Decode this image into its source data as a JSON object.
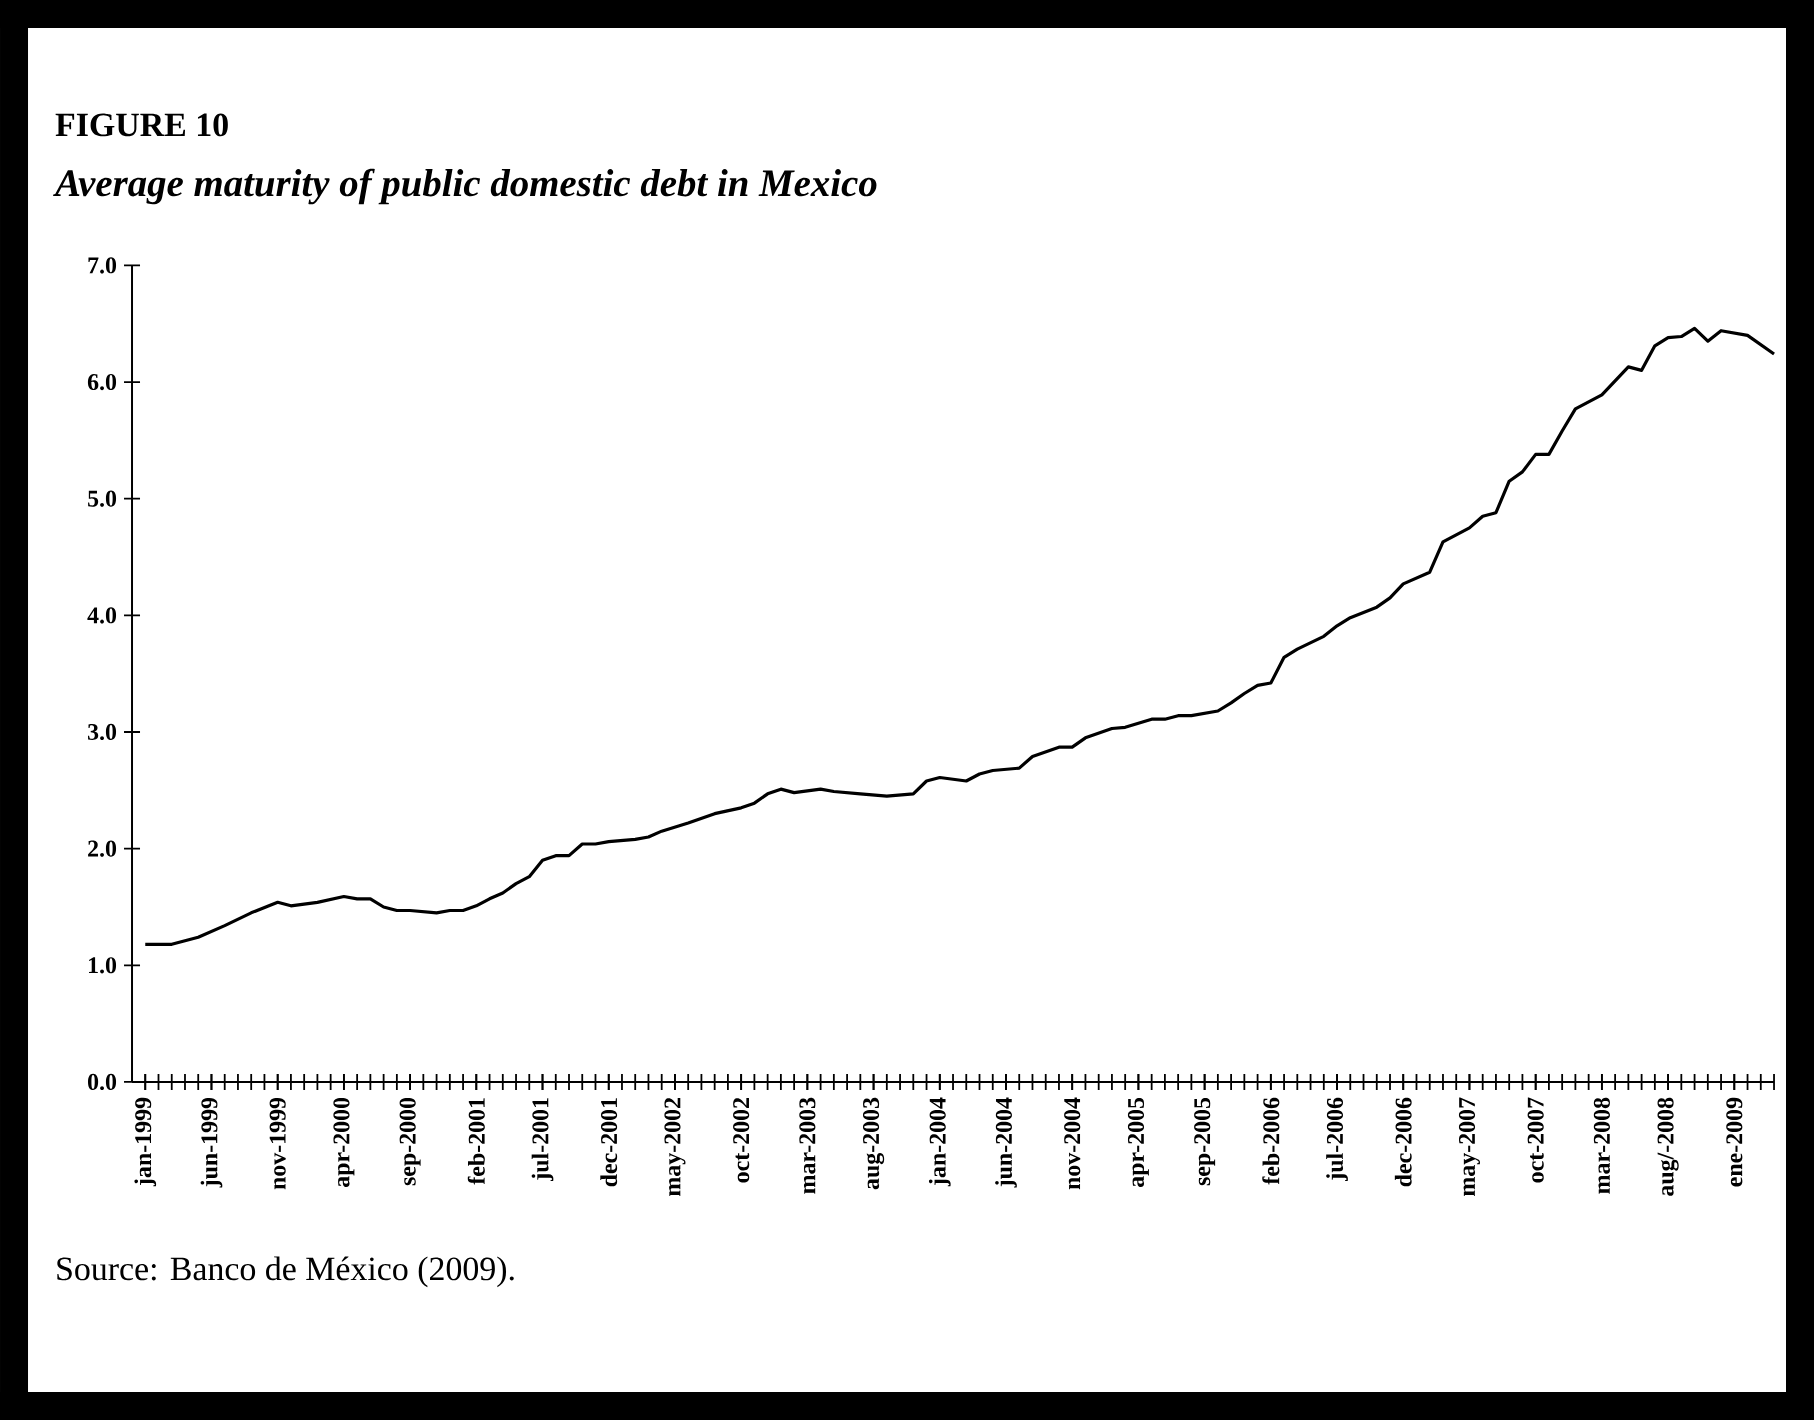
{
  "chart_data": {
    "type": "line",
    "title": "FIGURE 10",
    "subtitle": "Average maturity of public domestic debt in Mexico",
    "annotations": [
      "Source: Banco de México (2009)."
    ],
    "x": [
      "1999-01",
      "1999-03",
      "1999-05",
      "1999-07",
      "1999-09",
      "1999-11",
      "1999-12",
      "2000-02",
      "2000-04",
      "2000-05",
      "2000-06",
      "2000-07",
      "2000-08",
      "2000-09",
      "2000-11",
      "2000-12",
      "2001-01",
      "2001-02",
      "2001-03",
      "2001-04",
      "2001-05",
      "2001-06",
      "2001-07",
      "2001-08",
      "2001-09",
      "2001-10",
      "2001-11",
      "2001-12",
      "2002-02",
      "2002-03",
      "2002-04",
      "2002-06",
      "2002-08",
      "2002-10",
      "2002-11",
      "2002-12",
      "2003-01",
      "2003-02",
      "2003-04",
      "2003-05",
      "2003-07",
      "2003-09",
      "2003-11",
      "2003-12",
      "2004-01",
      "2004-03",
      "2004-04",
      "2004-05",
      "2004-07",
      "2004-08",
      "2004-10",
      "2004-11",
      "2004-12",
      "2005-02",
      "2005-03",
      "2005-05",
      "2005-06",
      "2005-07",
      "2005-08",
      "2005-10",
      "2005-11",
      "2005-12",
      "2006-01",
      "2006-02",
      "2006-03",
      "2006-04",
      "2006-06",
      "2006-07",
      "2006-08",
      "2006-10",
      "2006-11",
      "2006-12",
      "2007-02",
      "2007-03",
      "2007-04",
      "2007-05",
      "2007-06",
      "2007-07",
      "2007-08",
      "2007-09",
      "2007-10",
      "2007-11",
      "2007-12",
      "2008-01",
      "2008-03",
      "2008-05",
      "2008-06",
      "2008-07",
      "2008-08",
      "2008-09",
      "2008-10",
      "2008-11",
      "2008-12",
      "2009-02",
      "2009-04"
    ],
    "series": [
      {
        "color": "#000000",
        "values": [
          1.18,
          1.18,
          1.24,
          1.34,
          1.45,
          1.54,
          1.51,
          1.54,
          1.59,
          1.57,
          1.57,
          1.5,
          1.47,
          1.47,
          1.45,
          1.47,
          1.47,
          1.51,
          1.57,
          1.62,
          1.7,
          1.76,
          1.9,
          1.94,
          1.94,
          2.04,
          2.04,
          2.06,
          2.08,
          2.1,
          2.15,
          2.22,
          2.3,
          2.35,
          2.39,
          2.47,
          2.51,
          2.48,
          2.51,
          2.49,
          2.47,
          2.45,
          2.47,
          2.58,
          2.61,
          2.58,
          2.64,
          2.67,
          2.69,
          2.79,
          2.87,
          2.87,
          2.95,
          3.03,
          3.04,
          3.11,
          3.11,
          3.14,
          3.14,
          3.18,
          3.25,
          3.33,
          3.4,
          3.42,
          3.64,
          3.71,
          3.82,
          3.91,
          3.98,
          4.07,
          4.15,
          4.27,
          4.37,
          4.63,
          4.69,
          4.75,
          4.85,
          4.88,
          5.15,
          5.23,
          5.38,
          5.38,
          5.58,
          5.77,
          5.89,
          6.13,
          6.1,
          6.31,
          6.38,
          6.39,
          6.46,
          6.35,
          6.44,
          6.4,
          6.24
        ]
      }
    ],
    "xlim": [
      "1998-12",
      "2009-04"
    ],
    "xticks": [
      {
        "value": "1999-01",
        "label": "jan-1999"
      },
      {
        "value": "1999-06",
        "label": "jun-1999"
      },
      {
        "value": "1999-11",
        "label": "nov-1999"
      },
      {
        "value": "2000-04",
        "label": "apr-2000"
      },
      {
        "value": "2000-09",
        "label": "sep-2000"
      },
      {
        "value": "2001-02",
        "label": "feb-2001"
      },
      {
        "value": "2001-07",
        "label": "jul-2001"
      },
      {
        "value": "2001-12",
        "label": "dec-2001"
      },
      {
        "value": "2002-05",
        "label": "may-2002"
      },
      {
        "value": "2002-10",
        "label": "oct-2002"
      },
      {
        "value": "2003-03",
        "label": "mar-2003"
      },
      {
        "value": "2003-08",
        "label": "aug-2003"
      },
      {
        "value": "2004-01",
        "label": "jan-2004"
      },
      {
        "value": "2004-06",
        "label": "jun-2004"
      },
      {
        "value": "2004-11",
        "label": "nov-2004"
      },
      {
        "value": "2005-04",
        "label": "apr-2005"
      },
      {
        "value": "2005-09",
        "label": "sep-2005"
      },
      {
        "value": "2006-02",
        "label": "feb-2006"
      },
      {
        "value": "2006-07",
        "label": "jul-2006"
      },
      {
        "value": "2006-12",
        "label": "dec-2006"
      },
      {
        "value": "2007-05",
        "label": "may-2007"
      },
      {
        "value": "2007-10",
        "label": "oct-2007"
      },
      {
        "value": "2008-03",
        "label": "mar-2008"
      },
      {
        "value": "2008-08",
        "label": "aug/-2008"
      },
      {
        "value": "2009-01",
        "label": "ene-2009"
      }
    ],
    "ylim": [
      0,
      7
    ],
    "yticks": [
      {
        "value": 0,
        "label": "0.0"
      },
      {
        "value": 1,
        "label": "1.0"
      },
      {
        "value": 2,
        "label": "2.0"
      },
      {
        "value": 3,
        "label": "3.0"
      },
      {
        "value": 4,
        "label": "4.0"
      },
      {
        "value": 5,
        "label": "5.0"
      },
      {
        "value": 6,
        "label": "6.0"
      },
      {
        "value": 7,
        "label": "7.0"
      }
    ],
    "grid": false,
    "marker": "none",
    "line_style": "solid"
  }
}
